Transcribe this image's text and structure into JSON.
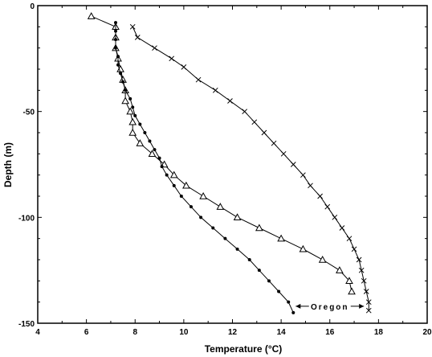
{
  "chart_data": {
    "type": "line",
    "title": "",
    "xlabel": "Temperature (°C)",
    "ylabel": "Depth (m)",
    "xlim": [
      4,
      20
    ],
    "ylim": [
      0,
      -150
    ],
    "xticks": [
      "4",
      "6",
      "8",
      "10",
      "12",
      "14",
      "16",
      "18",
      "20"
    ],
    "yticks": [
      "0",
      "-50",
      "-100",
      "-150"
    ],
    "grid": false,
    "legend": "none",
    "annotation": {
      "text": "Oregon",
      "from_x": 14.6,
      "to_x": 17.4,
      "y": -142
    },
    "series": [
      {
        "marker": "x",
        "points": [
          [
            7.9,
            -10
          ],
          [
            8.1,
            -15
          ],
          [
            8.8,
            -20
          ],
          [
            9.5,
            -25
          ],
          [
            10.0,
            -29
          ],
          [
            10.6,
            -35
          ],
          [
            11.3,
            -40
          ],
          [
            11.9,
            -45
          ],
          [
            12.5,
            -50
          ],
          [
            12.9,
            -55
          ],
          [
            13.3,
            -60
          ],
          [
            13.7,
            -65
          ],
          [
            14.1,
            -70
          ],
          [
            14.5,
            -75
          ],
          [
            14.9,
            -80
          ],
          [
            15.2,
            -85
          ],
          [
            15.6,
            -90
          ],
          [
            15.9,
            -95
          ],
          [
            16.2,
            -100
          ],
          [
            16.5,
            -105
          ],
          [
            16.8,
            -110
          ],
          [
            17.0,
            -115
          ],
          [
            17.2,
            -120
          ],
          [
            17.3,
            -125
          ],
          [
            17.4,
            -130
          ],
          [
            17.5,
            -135
          ],
          [
            17.6,
            -140
          ],
          [
            17.6,
            -144
          ]
        ]
      },
      {
        "marker": "triangle",
        "points": [
          [
            6.2,
            -5
          ],
          [
            7.2,
            -10
          ],
          [
            7.2,
            -15
          ],
          [
            7.2,
            -20
          ],
          [
            7.3,
            -25
          ],
          [
            7.4,
            -30
          ],
          [
            7.5,
            -35
          ],
          [
            7.6,
            -40
          ],
          [
            7.6,
            -45
          ],
          [
            7.8,
            -50
          ],
          [
            7.9,
            -55
          ],
          [
            7.9,
            -60
          ],
          [
            8.2,
            -65
          ],
          [
            8.7,
            -70
          ],
          [
            9.2,
            -75
          ],
          [
            9.6,
            -80
          ],
          [
            10.1,
            -85
          ],
          [
            10.8,
            -90
          ],
          [
            11.5,
            -95
          ],
          [
            12.2,
            -100
          ],
          [
            13.1,
            -105
          ],
          [
            14.0,
            -110
          ],
          [
            14.9,
            -115
          ],
          [
            15.7,
            -120
          ],
          [
            16.4,
            -125
          ],
          [
            16.8,
            -130
          ],
          [
            16.9,
            -135
          ]
        ]
      },
      {
        "marker": "dot",
        "points": [
          [
            7.2,
            -8
          ],
          [
            7.2,
            -12
          ],
          [
            7.2,
            -16
          ],
          [
            7.2,
            -20
          ],
          [
            7.3,
            -24
          ],
          [
            7.3,
            -28
          ],
          [
            7.4,
            -32
          ],
          [
            7.5,
            -36
          ],
          [
            7.6,
            -40
          ],
          [
            7.8,
            -44
          ],
          [
            7.9,
            -48
          ],
          [
            8.0,
            -52
          ],
          [
            8.2,
            -56
          ],
          [
            8.4,
            -60
          ],
          [
            8.6,
            -64
          ],
          [
            8.8,
            -68
          ],
          [
            9.0,
            -72
          ],
          [
            9.1,
            -76
          ],
          [
            9.3,
            -80
          ],
          [
            9.6,
            -85
          ],
          [
            9.9,
            -90
          ],
          [
            10.3,
            -95
          ],
          [
            10.7,
            -100
          ],
          [
            11.2,
            -105
          ],
          [
            11.7,
            -110
          ],
          [
            12.2,
            -115
          ],
          [
            12.7,
            -120
          ],
          [
            13.1,
            -125
          ],
          [
            13.5,
            -130
          ],
          [
            13.9,
            -135
          ],
          [
            14.3,
            -140
          ],
          [
            14.5,
            -145
          ]
        ]
      }
    ]
  }
}
